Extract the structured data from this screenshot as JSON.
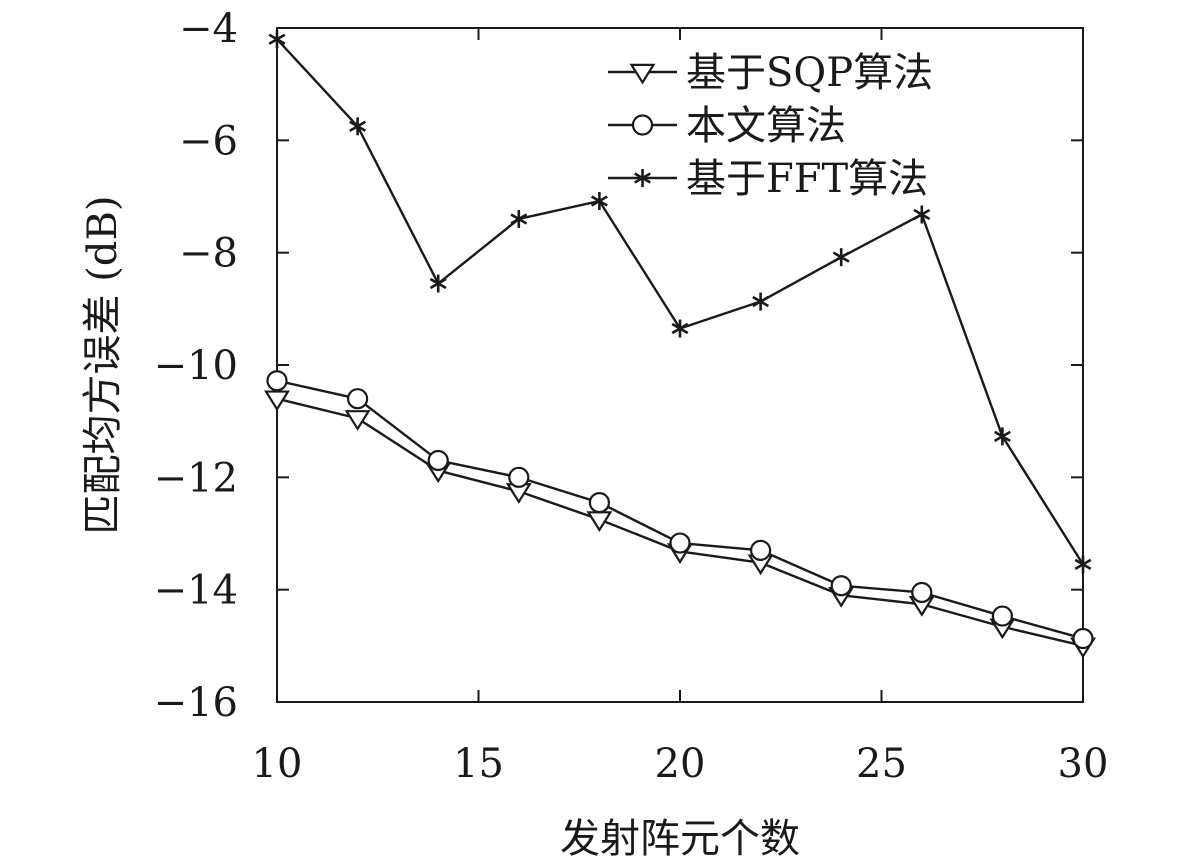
{
  "chart_data": {
    "type": "line",
    "xlabel": "发射阵元个数",
    "ylabel": "匹配均方误差 (dB)",
    "xlim": [
      10,
      30
    ],
    "ylim": [
      -16,
      -4
    ],
    "xticks": [
      10,
      15,
      20,
      25,
      30
    ],
    "yticks": [
      -16,
      -14,
      -12,
      -10,
      -8,
      -6,
      -4
    ],
    "xtick_labels": [
      "10",
      "15",
      "20",
      "25",
      "30"
    ],
    "ytick_labels": [
      "−16",
      "−14",
      "−12",
      "−10",
      "−8",
      "−6",
      "−4"
    ],
    "grid": false,
    "legend_position": "top-right",
    "x": [
      10,
      12,
      14,
      16,
      18,
      20,
      22,
      24,
      26,
      28,
      30
    ],
    "series": [
      {
        "name": "基于SQP算法",
        "marker": "triangle-down",
        "color": "#1a1a1a",
        "values": [
          -10.6,
          -10.95,
          -11.88,
          -12.25,
          -12.75,
          -13.32,
          -13.52,
          -14.1,
          -14.26,
          -14.66,
          -15.0
        ]
      },
      {
        "name": "本文算法",
        "marker": "circle",
        "color": "#1a1a1a",
        "values": [
          -10.28,
          -10.6,
          -11.7,
          -12.0,
          -12.45,
          -13.17,
          -13.3,
          -13.93,
          -14.05,
          -14.47,
          -14.87
        ]
      },
      {
        "name": "基于FFT算法",
        "marker": "asterisk",
        "color": "#1a1a1a",
        "values": [
          -4.2,
          -5.75,
          -8.55,
          -7.4,
          -7.08,
          -9.35,
          -8.87,
          -8.08,
          -7.32,
          -11.27,
          -13.55
        ]
      }
    ]
  }
}
